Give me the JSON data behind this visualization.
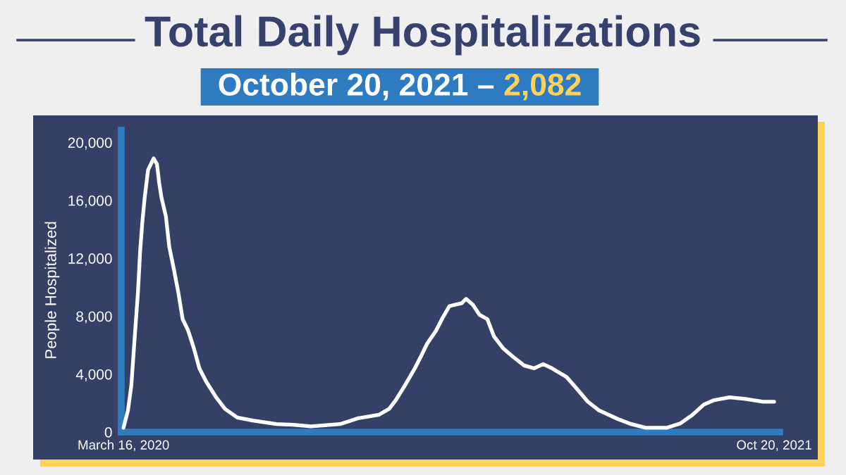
{
  "chart_data": {
    "type": "line",
    "title": "Total Daily Hospitalizations",
    "subtitle": "October 20, 2021 – 2,082",
    "ylabel": "People Hospitalized",
    "x": [
      "2020-03-16",
      "2020-03-20",
      "2020-03-23",
      "2020-03-26",
      "2020-03-29",
      "2020-03-31",
      "2020-04-02",
      "2020-04-04",
      "2020-04-07",
      "2020-04-12",
      "2020-04-15",
      "2020-04-17",
      "2020-04-19",
      "2020-04-23",
      "2020-04-26",
      "2020-04-30",
      "2020-05-04",
      "2020-05-08",
      "2020-05-13",
      "2020-05-18",
      "2020-05-23",
      "2020-05-29",
      "2020-06-07",
      "2020-06-15",
      "2020-06-26",
      "2020-07-10",
      "2020-07-31",
      "2020-08-15",
      "2020-08-31",
      "2020-09-26",
      "2020-10-12",
      "2020-10-31",
      "2020-11-09",
      "2020-11-15",
      "2020-11-23",
      "2020-12-02",
      "2020-12-08",
      "2020-12-13",
      "2020-12-21",
      "2020-12-27",
      "2021-01-02",
      "2021-01-13",
      "2021-01-17",
      "2021-01-23",
      "2021-01-29",
      "2021-02-05",
      "2021-02-11",
      "2021-02-19",
      "2021-02-28",
      "2021-03-10",
      "2021-03-19",
      "2021-03-27",
      "2021-04-04",
      "2021-04-17",
      "2021-04-25",
      "2021-05-06",
      "2021-05-16",
      "2021-06-02",
      "2021-06-14",
      "2021-06-27",
      "2021-07-16",
      "2021-07-28",
      "2021-08-08",
      "2021-08-18",
      "2021-08-27",
      "2021-09-10",
      "2021-09-23",
      "2021-10-10",
      "2021-10-20"
    ],
    "values": [
      300,
      1500,
      3200,
      6500,
      9700,
      12600,
      14600,
      16200,
      18100,
      18900,
      18500,
      17200,
      16200,
      14900,
      12800,
      11300,
      9700,
      7800,
      7000,
      5800,
      4400,
      3500,
      2400,
      1600,
      1000,
      800,
      550,
      500,
      400,
      550,
      950,
      1200,
      1600,
      2200,
      3200,
      4400,
      5300,
      6100,
      7000,
      7900,
      8700,
      8900,
      9200,
      8800,
      8100,
      7800,
      6600,
      5800,
      5200,
      4600,
      4400,
      4700,
      4400,
      3800,
      3100,
      2100,
      1500,
      900,
      550,
      300,
      300,
      600,
      1200,
      1900,
      2200,
      2400,
      2300,
      2100,
      2100
    ],
    "color": "#ffffff",
    "xlim": [
      "2020-03-14",
      "2021-10-25"
    ],
    "xticks": [
      {
        "value": "2020-03-16",
        "label": "March 16, 2020"
      },
      {
        "value": "2021-10-20",
        "label": "Oct 20, 2021"
      }
    ],
    "ylim": [
      0,
      20850
    ],
    "yticks": [
      0,
      {
        "value": 4000,
        "label": "4,000"
      },
      {
        "value": 8000,
        "label": "8,000"
      },
      {
        "value": 12000,
        "label": "12,000"
      },
      {
        "value": 16000,
        "label": "16,000"
      },
      {
        "value": 20000,
        "label": "20,000"
      }
    ],
    "grid": false,
    "marker": "none",
    "line_style": "solid"
  }
}
